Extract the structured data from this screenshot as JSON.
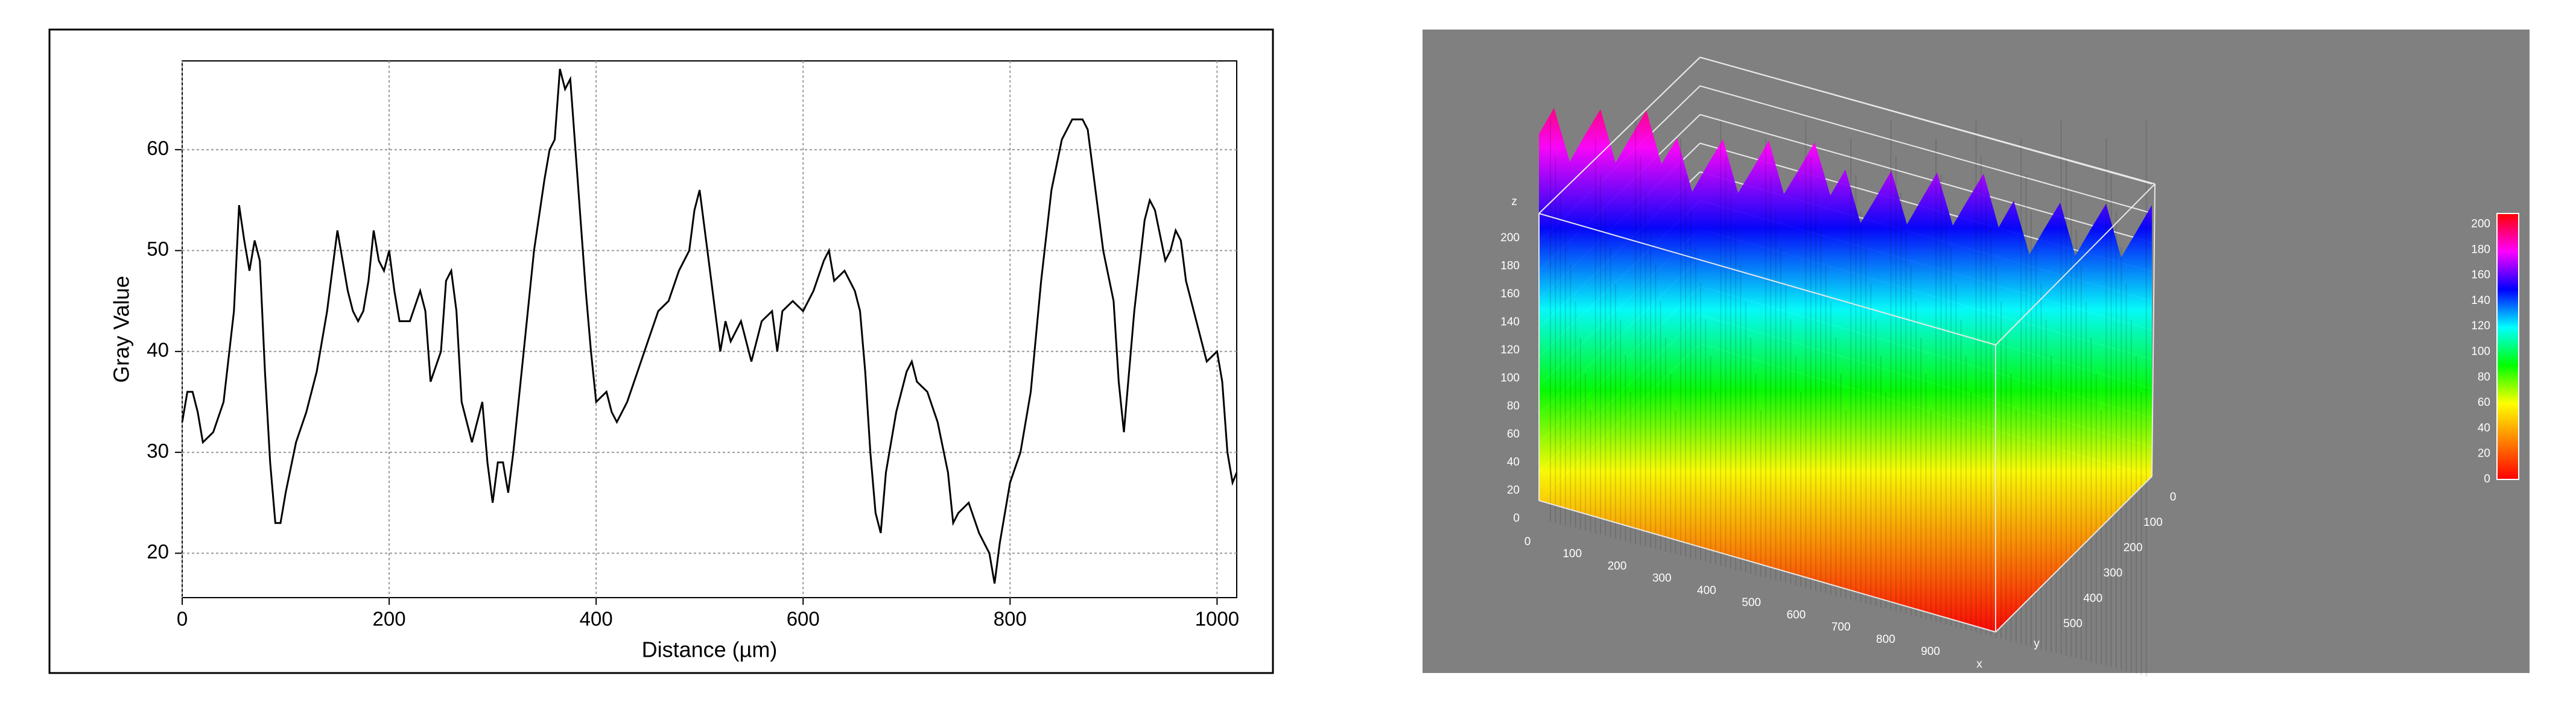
{
  "chart_data": [
    {
      "type": "line",
      "xlabel": "Distance (µm)",
      "ylabel": "Gray Value",
      "color": "#000000",
      "grid": true,
      "x": [
        0,
        5,
        10,
        15,
        20,
        30,
        40,
        50,
        55,
        60,
        65,
        70,
        75,
        80,
        85,
        90,
        95,
        100,
        110,
        120,
        130,
        140,
        145,
        150,
        155,
        160,
        165,
        170,
        175,
        180,
        185,
        190,
        195,
        200,
        205,
        210,
        220,
        230,
        235,
        240,
        250,
        255,
        260,
        265,
        270,
        280,
        290,
        295,
        300,
        305,
        310,
        315,
        320,
        330,
        340,
        350,
        355,
        360,
        365,
        370,
        375,
        380,
        385,
        390,
        395,
        400,
        410,
        415,
        420,
        430,
        440,
        450,
        460,
        470,
        480,
        490,
        495,
        500,
        505,
        510,
        515,
        520,
        525,
        530,
        540,
        550,
        560,
        570,
        575,
        580,
        590,
        600,
        610,
        620,
        625,
        630,
        640,
        650,
        655,
        660,
        665,
        670,
        675,
        680,
        690,
        700,
        705,
        710,
        720,
        730,
        740,
        745,
        750,
        760,
        770,
        780,
        785,
        790,
        800,
        810,
        820,
        830,
        840,
        850,
        860,
        870,
        875,
        880,
        890,
        900,
        905,
        910,
        920,
        930,
        935,
        940,
        950,
        955,
        960,
        965,
        970,
        980,
        990,
        1000,
        1005,
        1010,
        1015,
        1019
      ],
      "values": [
        33,
        36,
        36,
        34,
        31,
        32,
        35,
        44,
        54.5,
        51,
        48,
        51,
        49,
        38,
        29,
        23,
        23,
        26,
        31,
        34,
        38,
        44,
        48,
        52,
        49,
        46,
        44,
        43,
        44,
        47,
        52,
        49,
        48,
        50,
        46,
        43,
        43,
        46,
        44,
        37,
        40,
        47,
        48,
        44,
        35,
        31,
        35,
        29,
        25,
        29,
        29,
        26,
        30,
        40,
        50,
        57,
        60,
        61,
        68,
        66,
        67,
        60,
        53,
        46,
        40,
        35,
        36,
        34,
        33,
        35,
        38,
        41,
        44,
        45,
        48,
        50,
        54,
        56,
        52,
        48,
        44,
        40,
        43,
        41,
        43,
        39,
        43,
        44,
        40,
        44,
        45,
        44,
        46,
        49,
        50,
        47,
        48,
        46,
        44,
        38,
        30,
        24,
        22,
        28,
        34,
        38,
        39,
        37,
        36,
        33,
        28,
        23,
        24,
        25,
        22,
        20,
        17,
        21,
        27,
        30,
        36,
        47,
        56,
        61,
        63,
        63,
        62,
        58,
        50,
        45,
        37,
        32,
        44,
        53,
        55,
        54,
        49,
        50,
        52,
        51,
        47,
        43,
        39,
        40,
        37,
        30,
        27,
        28
      ],
      "xlim": [
        0,
        1019
      ],
      "ylim": [
        15.6,
        68.8
      ],
      "xticks": [
        0,
        200,
        400,
        600,
        800,
        1000
      ],
      "yticks": [
        20,
        30,
        40,
        50,
        60
      ]
    },
    {
      "type": "surface3d",
      "zlabel": "z",
      "xlabel": "x",
      "ylabel": "y",
      "zticks": [
        0,
        20,
        40,
        60,
        80,
        100,
        120,
        140,
        160,
        180,
        200
      ],
      "xticks": [
        0,
        100,
        200,
        300,
        400,
        500,
        600,
        700,
        800,
        900
      ],
      "yticks": [
        0,
        100,
        200,
        300,
        400,
        500
      ],
      "colorbar": {
        "ticks": [
          0,
          20,
          40,
          60,
          80,
          100,
          120,
          140,
          160,
          180,
          200
        ],
        "colors": [
          "#ff0000",
          "#ff8000",
          "#ffff00",
          "#00ff00",
          "#00ffff",
          "#0000ff",
          "#ff00ff",
          "#ff0000"
        ]
      }
    }
  ]
}
